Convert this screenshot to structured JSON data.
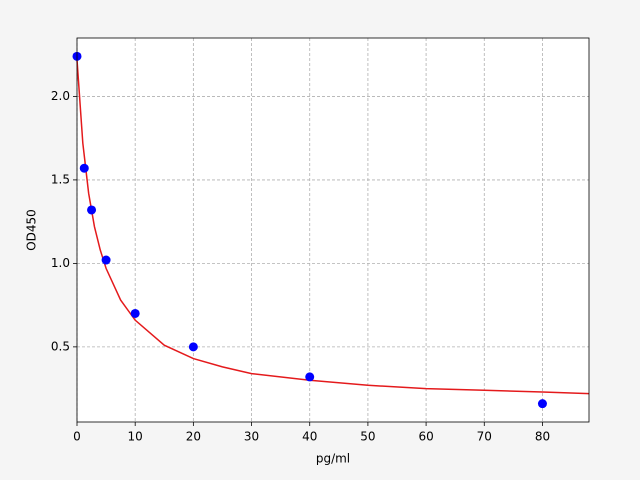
{
  "chart_data": {
    "type": "scatter",
    "xlabel": "pg/ml",
    "ylabel": "OD450",
    "points": {
      "x": [
        0,
        1.25,
        2.5,
        5,
        10,
        20,
        40,
        80
      ],
      "y": [
        2.24,
        1.57,
        1.32,
        1.02,
        0.7,
        0.5,
        0.32,
        0.16
      ],
      "color": "#0000ff"
    },
    "curve": {
      "x": [
        0,
        1,
        2,
        3,
        4,
        5,
        7.5,
        10,
        15,
        20,
        25,
        30,
        40,
        50,
        60,
        70,
        80,
        88
      ],
      "y": [
        2.22,
        1.72,
        1.42,
        1.22,
        1.08,
        0.97,
        0.78,
        0.66,
        0.51,
        0.43,
        0.38,
        0.34,
        0.3,
        0.27,
        0.25,
        0.24,
        0.23,
        0.22
      ],
      "color": "#e41a1c"
    },
    "xlim": [
      0,
      88
    ],
    "ylim": [
      0.05,
      2.35
    ],
    "xticks": [
      0,
      10,
      20,
      30,
      40,
      50,
      60,
      70,
      80
    ],
    "yticks": [
      0.5,
      {
        "value": 1.0,
        "label": "1.0"
      },
      1.5,
      {
        "value": 2.0,
        "label": "2.0"
      }
    ],
    "grid": true
  }
}
